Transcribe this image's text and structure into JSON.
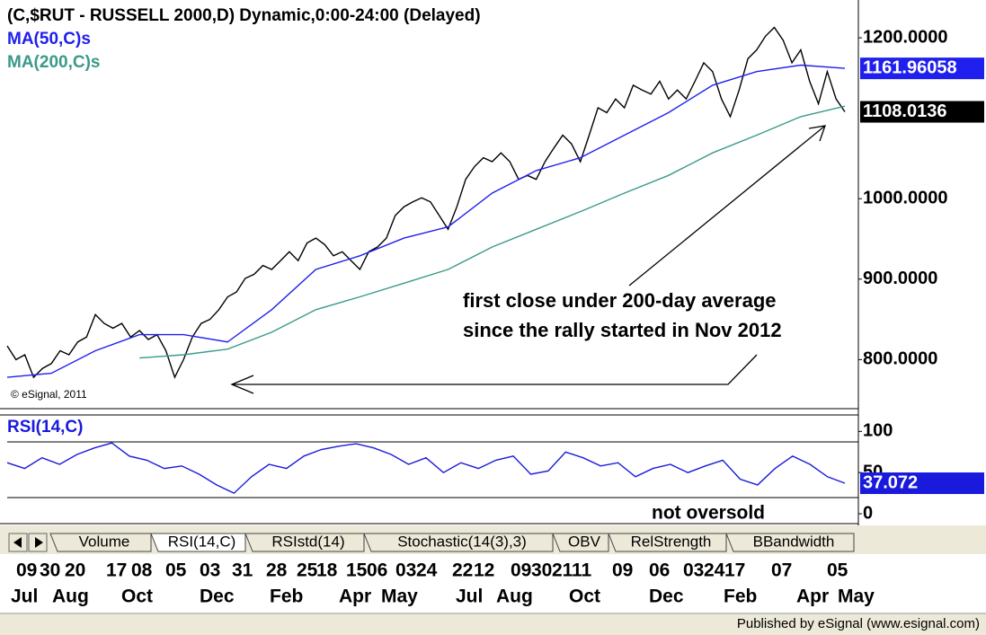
{
  "chart_data": [
    {
      "type": "line",
      "title": "(C,$RUT - RUSSELL 2000,D) Dynamic,0:00-24:00 (Delayed)",
      "series": [
        {
          "color": "#000000",
          "last_value_label": "1108.0136",
          "values": [
            817,
            800,
            806,
            778,
            789,
            795,
            811,
            806,
            822,
            828,
            856,
            845,
            839,
            845,
            828,
            836,
            825,
            831,
            811,
            778,
            800,
            828,
            845,
            850,
            862,
            878,
            884,
            901,
            906,
            917,
            912,
            923,
            934,
            923,
            945,
            951,
            943,
            929,
            934,
            923,
            912,
            934,
            940,
            951,
            979,
            990,
            996,
            1001,
            996,
            979,
            962,
            990,
            1024,
            1040,
            1051,
            1046,
            1057,
            1046,
            1024,
            1029,
            1024,
            1046,
            1063,
            1079,
            1068,
            1046,
            1079,
            1113,
            1107,
            1124,
            1113,
            1141,
            1135,
            1130,
            1146,
            1124,
            1135,
            1124,
            1146,
            1169,
            1158,
            1124,
            1102,
            1135,
            1174,
            1185,
            1202,
            1213,
            1197,
            1169,
            1185,
            1146,
            1118,
            1158,
            1124,
            1108
          ]
        },
        {
          "name": "MA(50,C)s",
          "color": "#2020ee",
          "last_value_label": "1161.96058",
          "values": [
            778,
            783,
            811,
            831,
            831,
            822,
            862,
            912,
            929,
            951,
            965,
            1007,
            1035,
            1051,
            1079,
            1107,
            1141,
            1158,
            1166,
            1162
          ]
        },
        {
          "name": "MA(200,C)s",
          "color": "#3a9a8a",
          "values": [
            null,
            null,
            null,
            802,
            806,
            813,
            834,
            862,
            878,
            895,
            912,
            940,
            962,
            984,
            1007,
            1029,
            1057,
            1079,
            1102,
            1115
          ]
        }
      ],
      "ylim": [
        739,
        1247
      ],
      "yticks": [
        {
          "value": 800,
          "label": "800.0000"
        },
        {
          "value": 900,
          "label": "900.0000"
        },
        {
          "value": 1000,
          "label": "1000.0000"
        },
        {
          "value": 1200,
          "label": "1200.0000"
        }
      ],
      "annotations": [
        "first close under 200-day average",
        "since the rally started in Nov 2012"
      ],
      "copyright": "© eSignal, 2011"
    },
    {
      "type": "line",
      "title": "RSI(14,C)",
      "series": [
        {
          "color": "#1a1adc",
          "last_value_label": "37.072",
          "values": [
            62,
            55,
            68,
            60,
            72,
            80,
            86,
            70,
            65,
            55,
            58,
            48,
            35,
            25,
            45,
            60,
            55,
            70,
            78,
            82,
            85,
            80,
            72,
            60,
            68,
            50,
            62,
            55,
            65,
            70,
            48,
            52,
            75,
            68,
            58,
            62,
            45,
            55,
            60,
            50,
            58,
            65,
            42,
            35,
            55,
            70,
            60,
            45,
            37.072
          ]
        }
      ],
      "ylim": [
        -12,
        120
      ],
      "yticks": [
        0,
        50,
        100
      ],
      "annotations": [
        "not oversold"
      ],
      "x_day_labels": [
        "09",
        "30",
        "20",
        "17",
        "08",
        "05",
        "03",
        "31",
        "28",
        "25",
        "18",
        "15",
        "06",
        "03",
        "24",
        "22",
        "12",
        "09",
        "30",
        "21",
        "11",
        "09",
        "06",
        "03",
        "24",
        "17",
        "07",
        "05"
      ],
      "x_month_labels": [
        "Jul",
        "Aug",
        "Oct",
        "Dec",
        "Feb",
        "Apr",
        "May",
        "Jul",
        "Aug",
        "Oct",
        "Dec",
        "Feb",
        "Apr",
        "May"
      ]
    }
  ],
  "tabs": [
    "Volume",
    "RSI(14,C)",
    "RSIstd(14)",
    "Stochastic(14(3),3)",
    "OBV",
    "RelStrength",
    "BBandwidth"
  ],
  "footer": "Published by eSignal (www.esignal.com)"
}
